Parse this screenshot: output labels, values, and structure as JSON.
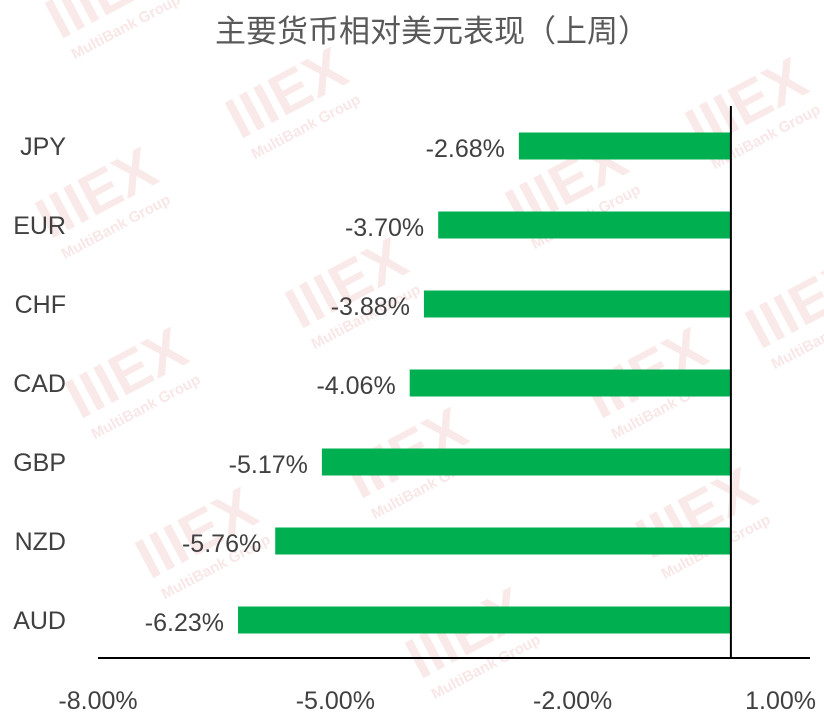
{
  "chart_data": {
    "type": "bar",
    "orientation": "horizontal",
    "title": "主要货币相对美元表现（上周）",
    "categories": [
      "JPY",
      "EUR",
      "CHF",
      "CAD",
      "GBP",
      "NZD",
      "AUD"
    ],
    "values": [
      -2.68,
      -3.7,
      -3.88,
      -4.06,
      -5.17,
      -5.76,
      -6.23
    ],
    "value_labels": [
      "-2.68%",
      "-3.70%",
      "-3.88%",
      "-4.06%",
      "-5.17%",
      "-5.76%",
      "-6.23%"
    ],
    "xlim": [
      -8.0,
      1.0
    ],
    "xticks": [
      -8.0,
      -5.0,
      -2.0,
      1.0
    ],
    "xtick_labels": [
      "-8.00%",
      "-5.00%",
      "-2.00%",
      "1.00%"
    ],
    "xlabel": "",
    "ylabel": "",
    "grid": false,
    "bar_color": "#00b050"
  },
  "watermark": {
    "logo": "IIIEX",
    "subtitle": "MultiBank Group"
  }
}
